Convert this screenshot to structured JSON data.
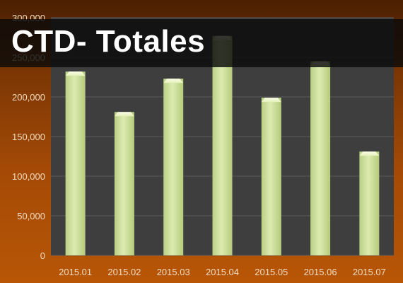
{
  "colors": {
    "background": "#a44a06",
    "plot_area": "#3e3e3e",
    "bar": "#cfe39a",
    "axis_text": "#f0dcc0",
    "title_banner": "#0a0a0a",
    "title_text": "#ffffff"
  },
  "chart_data": {
    "type": "bar",
    "title": "CTD- Totales",
    "categories": [
      "2015.01",
      "2015.02",
      "2015.03",
      "2015.04",
      "2015.05",
      "2015.06",
      "2015.07"
    ],
    "values": [
      232000,
      181000,
      223000,
      277000,
      199000,
      245000,
      131000
    ],
    "yticks": [
      "0",
      "50,000",
      "100,000",
      "150,000",
      "200,000",
      "250,000",
      "300,000"
    ],
    "ylim": [
      0,
      300000
    ],
    "xlabel": "",
    "ylabel": "",
    "grid": true,
    "legend": "none"
  }
}
